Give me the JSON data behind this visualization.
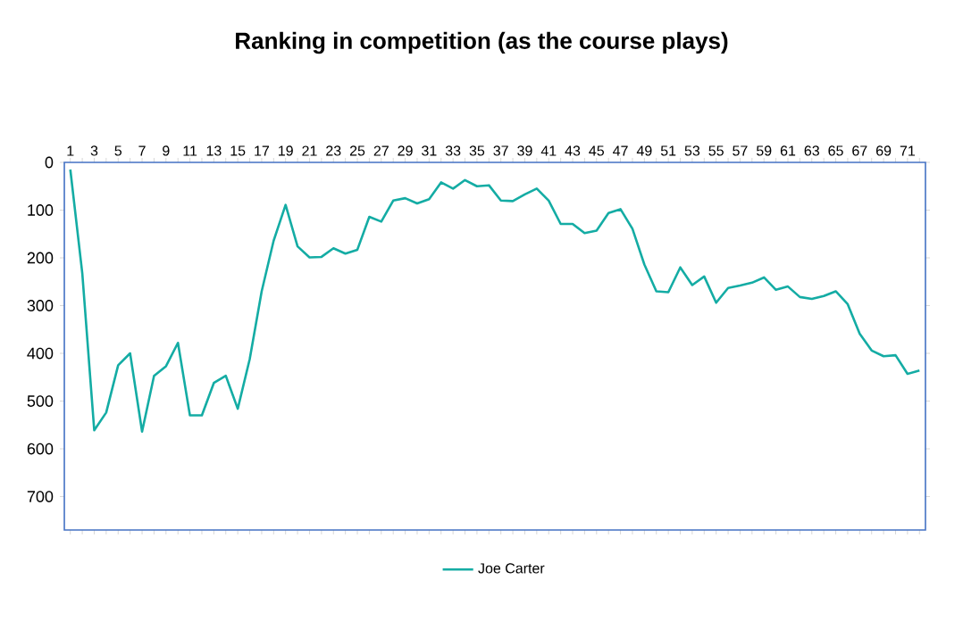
{
  "chart_data": {
    "type": "line",
    "title": "Ranking in competition (as the course plays)",
    "categories": [
      "1",
      null,
      "3",
      null,
      "5",
      null,
      "7",
      null,
      "9",
      null,
      "11",
      null,
      "13",
      null,
      "15",
      null,
      "17",
      null,
      "19",
      null,
      "21",
      null,
      "23",
      null,
      "25",
      null,
      "27",
      null,
      "29",
      null,
      "31",
      null,
      "33",
      null,
      "35",
      null,
      "37",
      null,
      "39",
      null,
      "41",
      null,
      "43",
      null,
      "45",
      null,
      "47",
      null,
      "49",
      null,
      "51",
      null,
      "53",
      null,
      "55",
      null,
      "57",
      null,
      "59",
      null,
      "61",
      null,
      "63",
      null,
      "65",
      null,
      "67",
      null,
      "69",
      null,
      "71",
      null
    ],
    "series": [
      {
        "name": "Joe Carter",
        "color": "#14aca4",
        "values": [
          15,
          232,
          561,
          524,
          425,
          400,
          564,
          447,
          427,
          378,
          530,
          530,
          462,
          447,
          516,
          412,
          270,
          164,
          89,
          176,
          199,
          198,
          180,
          191,
          183,
          114,
          124,
          80,
          75,
          86,
          77,
          42,
          55,
          37,
          50,
          48,
          80,
          81,
          67,
          55,
          80,
          129,
          129,
          148,
          143,
          106,
          98,
          139,
          214,
          270,
          272,
          220,
          257,
          239,
          294,
          263,
          258,
          252,
          241,
          267,
          260,
          282,
          286,
          280,
          270,
          297,
          359,
          394,
          406,
          404,
          443,
          436
        ]
      }
    ],
    "ylim": [
      770,
      0
    ],
    "yticks": [
      0,
      100,
      200,
      300,
      400,
      500,
      600,
      700
    ],
    "grid": false,
    "legend": "bottom",
    "marker": "none",
    "line_style": "solid"
  }
}
